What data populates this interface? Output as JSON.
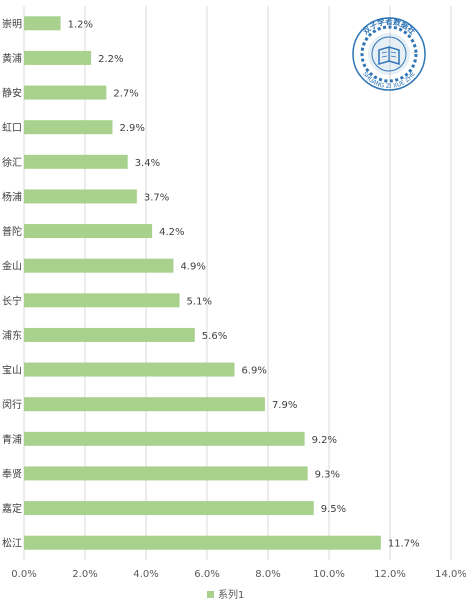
{
  "chart_data": {
    "type": "bar",
    "orientation": "horizontal",
    "categories": [
      "崇明",
      "黄浦",
      "静安",
      "虹口",
      "徐汇",
      "杨浦",
      "普陀",
      "金山",
      "长宁",
      "浦东",
      "宝山",
      "闵行",
      "青浦",
      "奉贤",
      "嘉定",
      "松江"
    ],
    "series": [
      {
        "name": "系列1",
        "values": [
          1.2,
          2.2,
          2.7,
          2.9,
          3.4,
          3.7,
          4.2,
          4.9,
          5.1,
          5.6,
          6.9,
          7.9,
          9.2,
          9.3,
          9.5,
          11.7
        ],
        "data_labels": [
          "1.2%",
          "2.2%",
          "2.7%",
          "2.9%",
          "3.4%",
          "3.7%",
          "4.2%",
          "4.9%",
          "5.1%",
          "5.6%",
          "6.9%",
          "7.9%",
          "9.2%",
          "9.3%",
          "9.5%",
          "11.7%"
        ]
      }
    ],
    "x_ticks": [
      "0.0%",
      "2.0%",
      "4.0%",
      "6.0%",
      "8.0%",
      "10.0%",
      "12.0%",
      "14.0%"
    ],
    "xlim": [
      0,
      14
    ],
    "grid": true,
    "legend_position": "bottom",
    "colors": {
      "bar": "#a9d18e",
      "grid": "#d9d9d9",
      "text": "#404040"
    }
  },
  "watermark": {
    "top_text": "双子学者数据社",
    "bottom_text": "SHUANG ZI XUE ZHE",
    "color": "#2e75b6"
  }
}
